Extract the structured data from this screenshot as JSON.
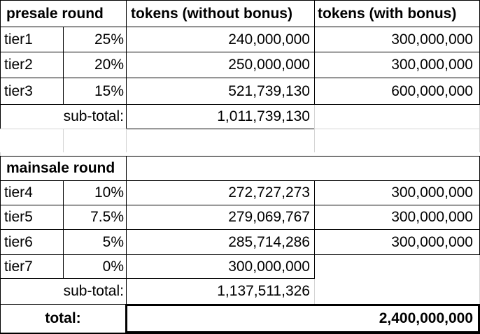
{
  "presale": {
    "header": "presale round",
    "col_without": "tokens (without bonus)",
    "col_with": "tokens (with bonus)",
    "rows": [
      {
        "tier": "tier1",
        "bonus": "25%",
        "without": "240,000,000",
        "with": "300,000,000"
      },
      {
        "tier": "tier2",
        "bonus": "20%",
        "without": "250,000,000",
        "with": "300,000,000"
      },
      {
        "tier": "tier3",
        "bonus": "15%",
        "without": "521,739,130",
        "with": "600,000,000"
      }
    ],
    "subtotal_label": "sub-total:",
    "subtotal_value": "1,011,739,130"
  },
  "mainsale": {
    "header": "mainsale round",
    "rows": [
      {
        "tier": "tier4",
        "bonus": "10%",
        "without": "272,727,273",
        "with": "300,000,000"
      },
      {
        "tier": "tier5",
        "bonus": "7.5%",
        "without": "279,069,767",
        "with": "300,000,000"
      },
      {
        "tier": "tier6",
        "bonus": "5%",
        "without": "285,714,286",
        "with": "300,000,000"
      },
      {
        "tier": "tier7",
        "bonus": "0%",
        "without": "300,000,000",
        "with": ""
      }
    ],
    "subtotal_label": "sub-total:",
    "subtotal_value": "1,137,511,326"
  },
  "total": {
    "label": "total:",
    "value": "2,400,000,000"
  }
}
